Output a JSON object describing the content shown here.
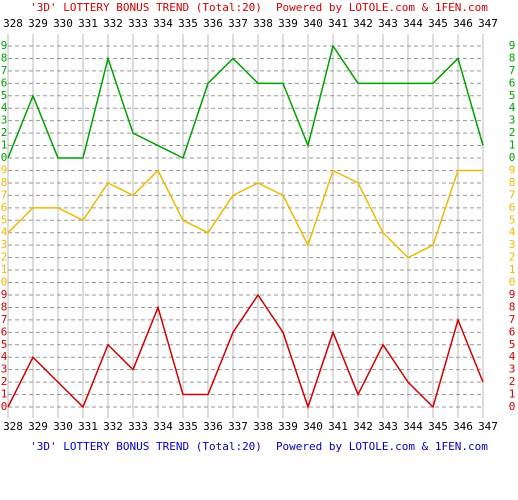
{
  "chart_data": {
    "type": "line",
    "title": "'3D' LOTTERY BONUS TREND (Total:20)",
    "subtitle": "Powered by LOTOLE.com & 1FEN.com",
    "categories": [
      "328",
      "329",
      "330",
      "331",
      "332",
      "333",
      "334",
      "335",
      "336",
      "337",
      "338",
      "339",
      "340",
      "341",
      "342",
      "343",
      "344",
      "345",
      "346",
      "347"
    ],
    "ylim": [
      0,
      9
    ],
    "yticks": [
      0,
      1,
      2,
      3,
      4,
      5,
      6,
      7,
      8,
      9
    ],
    "grid": true,
    "series": [
      {
        "color": "#00a000",
        "values": [
          0,
          5,
          0,
          0,
          8,
          2,
          1,
          0,
          6,
          8,
          6,
          6,
          1,
          9,
          6,
          6,
          6,
          6,
          8,
          1
        ]
      },
      {
        "color": "#f0b800",
        "values": [
          4,
          6,
          6,
          5,
          8,
          7,
          9,
          5,
          4,
          7,
          8,
          7,
          3,
          9,
          8,
          4,
          2,
          3,
          9,
          9
        ]
      },
      {
        "color": "#d00000",
        "values": [
          0,
          4,
          2,
          0,
          5,
          3,
          8,
          1,
          1,
          6,
          9,
          6,
          0,
          6,
          1,
          5,
          2,
          0,
          7,
          2
        ]
      }
    ]
  }
}
